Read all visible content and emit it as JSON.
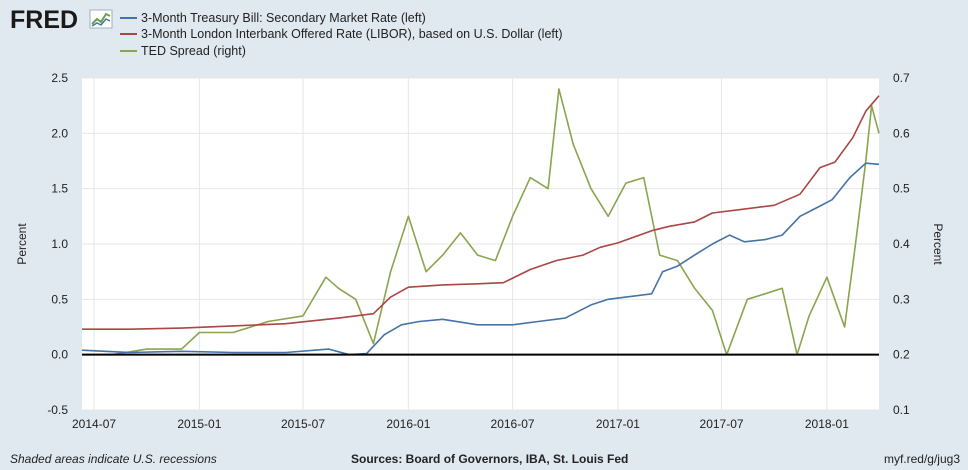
{
  "brand": {
    "name": "FRED"
  },
  "legend": {
    "items": [
      {
        "label": "3-Month Treasury Bill: Secondary Market Rate (left)",
        "color": "#4572a7"
      },
      {
        "label": "3-Month London Interbank Offered Rate (LIBOR), based on U.S. Dollar (left)",
        "color": "#aa4643"
      },
      {
        "label": "TED Spread (right)",
        "color": "#89a54e"
      }
    ]
  },
  "axes": {
    "left_label": "Percent",
    "right_label": "Percent"
  },
  "footer": {
    "note": "Shaded areas indicate U.S. recessions",
    "sources": "Sources: Board of Governors, IBA, St. Louis Fed",
    "link": "myf.red/g/jug3"
  },
  "chart_data": {
    "type": "line",
    "x_range": [
      "2014-06-10",
      "2018-04-02"
    ],
    "x_ticks": [
      "2014-07",
      "2015-01",
      "2015-07",
      "2016-01",
      "2016-07",
      "2017-01",
      "2017-07",
      "2018-01"
    ],
    "y_left": {
      "ticks": [
        "-0.5",
        "0.0",
        "0.5",
        "1.0",
        "1.5",
        "2.0",
        "2.5"
      ],
      "range": [
        -0.5,
        2.5
      ]
    },
    "y_right": {
      "ticks": [
        "0.1",
        "0.2",
        "0.3",
        "0.4",
        "0.5",
        "0.6",
        "0.7"
      ],
      "range": [
        0.1,
        0.7
      ]
    },
    "grid": true,
    "zero_line": 0.0,
    "series": [
      {
        "name": "3-Month Treasury Bill: Secondary Market Rate (left)",
        "axis": "left",
        "color": "#4572a7",
        "points": [
          [
            "2014-06-10",
            0.04
          ],
          [
            "2014-09-01",
            0.02
          ],
          [
            "2014-12-01",
            0.03
          ],
          [
            "2015-03-01",
            0.02
          ],
          [
            "2015-06-01",
            0.02
          ],
          [
            "2015-08-15",
            0.05
          ],
          [
            "2015-09-20",
            0.0
          ],
          [
            "2015-10-20",
            0.01
          ],
          [
            "2015-11-20",
            0.18
          ],
          [
            "2015-12-20",
            0.27
          ],
          [
            "2016-01-20",
            0.3
          ],
          [
            "2016-03-01",
            0.32
          ],
          [
            "2016-05-01",
            0.27
          ],
          [
            "2016-07-01",
            0.27
          ],
          [
            "2016-08-15",
            0.3
          ],
          [
            "2016-10-01",
            0.33
          ],
          [
            "2016-11-15",
            0.45
          ],
          [
            "2016-12-15",
            0.5
          ],
          [
            "2017-01-15",
            0.52
          ],
          [
            "2017-03-01",
            0.55
          ],
          [
            "2017-03-20",
            0.75
          ],
          [
            "2017-04-15",
            0.8
          ],
          [
            "2017-05-15",
            0.9
          ],
          [
            "2017-06-15",
            1.0
          ],
          [
            "2017-07-15",
            1.08
          ],
          [
            "2017-08-10",
            1.02
          ],
          [
            "2017-09-15",
            1.04
          ],
          [
            "2017-10-15",
            1.08
          ],
          [
            "2017-11-15",
            1.25
          ],
          [
            "2017-12-15",
            1.33
          ],
          [
            "2018-01-10",
            1.4
          ],
          [
            "2018-02-10",
            1.6
          ],
          [
            "2018-03-10",
            1.73
          ],
          [
            "2018-04-02",
            1.72
          ]
        ]
      },
      {
        "name": "3-Month London Interbank Offered Rate (LIBOR), based on U.S. Dollar (left)",
        "axis": "left",
        "color": "#aa4643",
        "points": [
          [
            "2014-06-10",
            0.23
          ],
          [
            "2014-09-01",
            0.23
          ],
          [
            "2014-12-01",
            0.24
          ],
          [
            "2015-03-01",
            0.26
          ],
          [
            "2015-06-01",
            0.28
          ],
          [
            "2015-09-01",
            0.33
          ],
          [
            "2015-11-01",
            0.37
          ],
          [
            "2015-12-01",
            0.52
          ],
          [
            "2016-01-01",
            0.61
          ],
          [
            "2016-03-01",
            0.63
          ],
          [
            "2016-05-01",
            0.64
          ],
          [
            "2016-06-15",
            0.65
          ],
          [
            "2016-08-01",
            0.77
          ],
          [
            "2016-09-15",
            0.85
          ],
          [
            "2016-11-01",
            0.9
          ],
          [
            "2016-12-01",
            0.97
          ],
          [
            "2017-01-01",
            1.01
          ],
          [
            "2017-03-01",
            1.12
          ],
          [
            "2017-04-01",
            1.16
          ],
          [
            "2017-05-15",
            1.2
          ],
          [
            "2017-06-15",
            1.28
          ],
          [
            "2017-08-01",
            1.31
          ],
          [
            "2017-10-01",
            1.35
          ],
          [
            "2017-11-15",
            1.45
          ],
          [
            "2017-12-20",
            1.69
          ],
          [
            "2018-01-15",
            1.74
          ],
          [
            "2018-02-15",
            1.96
          ],
          [
            "2018-03-10",
            2.2
          ],
          [
            "2018-04-02",
            2.34
          ]
        ]
      },
      {
        "name": "TED Spread (right)",
        "axis": "right",
        "color": "#89a54e",
        "points": [
          [
            "2014-06-10",
            0.2
          ],
          [
            "2014-08-01",
            0.2
          ],
          [
            "2014-10-01",
            0.21
          ],
          [
            "2014-12-01",
            0.21
          ],
          [
            "2015-01-01",
            0.24
          ],
          [
            "2015-03-01",
            0.24
          ],
          [
            "2015-05-01",
            0.26
          ],
          [
            "2015-07-01",
            0.27
          ],
          [
            "2015-08-10",
            0.34
          ],
          [
            "2015-09-01",
            0.32
          ],
          [
            "2015-10-01",
            0.3
          ],
          [
            "2015-11-01",
            0.22
          ],
          [
            "2015-12-01",
            0.35
          ],
          [
            "2016-01-01",
            0.45
          ],
          [
            "2016-02-01",
            0.35
          ],
          [
            "2016-03-01",
            0.38
          ],
          [
            "2016-04-01",
            0.42
          ],
          [
            "2016-05-01",
            0.38
          ],
          [
            "2016-06-01",
            0.37
          ],
          [
            "2016-07-01",
            0.45
          ],
          [
            "2016-08-01",
            0.52
          ],
          [
            "2016-09-01",
            0.5
          ],
          [
            "2016-09-20",
            0.68
          ],
          [
            "2016-10-15",
            0.58
          ],
          [
            "2016-11-15",
            0.5
          ],
          [
            "2016-12-15",
            0.45
          ],
          [
            "2017-01-15",
            0.51
          ],
          [
            "2017-02-15",
            0.52
          ],
          [
            "2017-03-15",
            0.38
          ],
          [
            "2017-04-15",
            0.37
          ],
          [
            "2017-05-15",
            0.32
          ],
          [
            "2017-06-15",
            0.28
          ],
          [
            "2017-07-10",
            0.2
          ],
          [
            "2017-08-15",
            0.3
          ],
          [
            "2017-09-15",
            0.31
          ],
          [
            "2017-10-15",
            0.32
          ],
          [
            "2017-11-10",
            0.2
          ],
          [
            "2017-12-01",
            0.27
          ],
          [
            "2018-01-01",
            0.34
          ],
          [
            "2018-02-01",
            0.25
          ],
          [
            "2018-02-20",
            0.4
          ],
          [
            "2018-03-10",
            0.55
          ],
          [
            "2018-03-20",
            0.65
          ],
          [
            "2018-04-02",
            0.6
          ]
        ]
      }
    ]
  }
}
